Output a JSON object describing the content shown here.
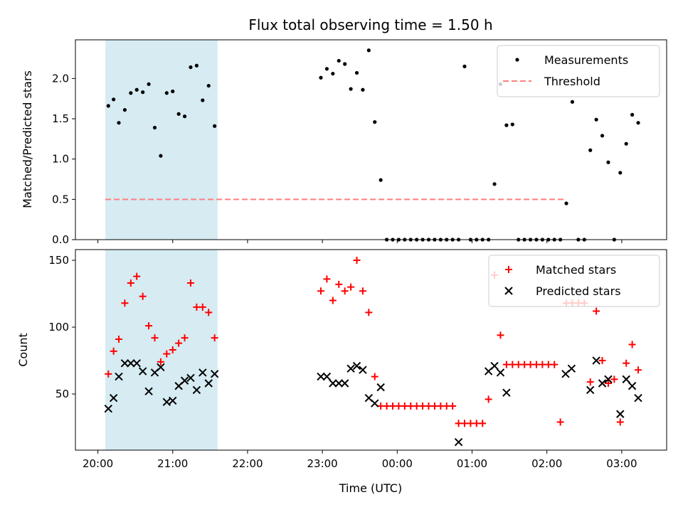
{
  "chart_data": {
    "title": "Flux total observing time = 1.50 h",
    "xlabel": "Time (UTC)",
    "x_unit": "hours since 20:00 UTC",
    "x_ticks": [
      {
        "x": 0,
        "label": "20:00"
      },
      {
        "x": 1,
        "label": "21:00"
      },
      {
        "x": 2,
        "label": "22:00"
      },
      {
        "x": 3,
        "label": "23:00"
      },
      {
        "x": 4,
        "label": "00:00"
      },
      {
        "x": 5,
        "label": "01:00"
      },
      {
        "x": 6,
        "label": "02:00"
      },
      {
        "x": 7,
        "label": "03:00"
      }
    ],
    "xlim": [
      -0.3,
      7.6
    ],
    "shaded_region": {
      "x0": 0.1,
      "x1": 1.6,
      "color": "#add8e6"
    },
    "panels": [
      {
        "id": "ratio",
        "type": "scatter",
        "ylabel": "Matched/Predicted stars",
        "ylim": [
          0,
          2.48
        ],
        "y_ticks": [
          {
            "v": 0,
            "label": "0.0"
          },
          {
            "v": 0.5,
            "label": "0.5"
          },
          {
            "v": 1,
            "label": "1.0"
          },
          {
            "v": 1.5,
            "label": "1.5"
          },
          {
            "v": 2,
            "label": "2.0"
          }
        ],
        "legend": {
          "placement": "upper-right",
          "entries": [
            {
              "label": "Measurements",
              "marker": "dot",
              "color": "#000000"
            },
            {
              "label": "Threshold",
              "marker": "dashed-line",
              "color": "#ff7f7f"
            }
          ]
        },
        "threshold": {
          "value": 0.5,
          "x0": 0.1,
          "x1": 6.25,
          "color": "#ff7f7f"
        },
        "series": [
          {
            "label": "Measurements",
            "marker": "dot",
            "color": "#000000",
            "x": [
              0.14,
              0.21,
              0.28,
              0.36,
              0.44,
              0.52,
              0.6,
              0.68,
              0.76,
              0.84,
              0.92,
              1.0,
              1.08,
              1.16,
              1.24,
              1.32,
              1.4,
              1.48,
              1.56,
              1.64,
              2.98,
              3.06,
              3.14,
              3.22,
              3.3,
              3.38,
              3.46,
              3.54,
              3.62,
              3.7,
              3.78,
              3.86,
              3.94,
              4.02,
              4.1,
              4.18,
              4.26,
              4.34,
              4.42,
              4.5,
              4.58,
              4.66,
              4.74,
              4.82,
              4.9,
              4.98,
              5.06,
              5.14,
              5.22,
              5.3,
              5.38,
              5.46,
              5.54,
              5.62,
              5.7,
              5.78,
              5.86,
              5.94,
              6.02,
              6.1,
              6.18,
              6.26,
              6.34,
              6.42,
              6.5,
              6.58,
              6.66,
              6.74,
              6.82,
              6.9,
              6.98,
              7.06,
              7.14,
              7.22
            ],
            "y": [
              1.66,
              1.74,
              1.45,
              1.61,
              1.82,
              1.86,
              1.83,
              1.93,
              1.39,
              1.04,
              1.82,
              1.84,
              1.56,
              1.53,
              2.14,
              2.16,
              1.73,
              1.91,
              1.41,
              null,
              2.01,
              2.12,
              2.06,
              2.22,
              2.18,
              1.87,
              2.07,
              1.86,
              2.35,
              1.46,
              0.74,
              0,
              0,
              0,
              0,
              0,
              0,
              0,
              0,
              0,
              0,
              0,
              0,
              0,
              2.15,
              0,
              0,
              0,
              0,
              0.69,
              1.93,
              1.42,
              1.43,
              0,
              0,
              0,
              0,
              0,
              0,
              0,
              0,
              0.45,
              1.71,
              0,
              0,
              1.11,
              1.49,
              1.29,
              0.96,
              0,
              0.83,
              1.19,
              1.55,
              1.45
            ]
          }
        ]
      },
      {
        "id": "counts",
        "type": "scatter",
        "ylabel": "Count",
        "ylim": [
          8,
          158
        ],
        "y_ticks": [
          {
            "v": 50,
            "label": "50"
          },
          {
            "v": 100,
            "label": "100"
          },
          {
            "v": 150,
            "label": "150"
          }
        ],
        "legend": {
          "placement": "upper-right",
          "entries": [
            {
              "label": "Matched stars",
              "marker": "plus",
              "color": "#ff0000"
            },
            {
              "label": "Predicted stars",
              "marker": "x",
              "color": "#000000"
            }
          ]
        },
        "series": [
          {
            "label": "Matched stars",
            "marker": "plus",
            "color": "#ff0000",
            "x": [
              0.14,
              0.21,
              0.28,
              0.36,
              0.44,
              0.52,
              0.6,
              0.68,
              0.76,
              0.84,
              0.92,
              1.0,
              1.08,
              1.16,
              1.24,
              1.32,
              1.4,
              1.48,
              1.56,
              1.64,
              2.98,
              3.06,
              3.14,
              3.22,
              3.3,
              3.38,
              3.46,
              3.54,
              3.62,
              3.7,
              3.78,
              3.86,
              3.94,
              4.02,
              4.1,
              4.18,
              4.26,
              4.34,
              4.42,
              4.5,
              4.58,
              4.66,
              4.74,
              4.82,
              4.9,
              4.98,
              5.06,
              5.14,
              5.22,
              5.3,
              5.38,
              5.46,
              5.54,
              5.62,
              5.7,
              5.78,
              5.86,
              5.94,
              6.02,
              6.1,
              6.18,
              6.26,
              6.34,
              6.42,
              6.5,
              6.58,
              6.66,
              6.74,
              6.82,
              6.9,
              6.98,
              7.06,
              7.14,
              7.22
            ],
            "y": [
              65,
              82,
              91,
              118,
              133,
              138,
              123,
              101,
              92,
              74,
              80,
              83,
              88,
              92,
              133,
              115,
              115,
              111,
              92,
              null,
              127,
              136,
              120,
              132,
              127,
              130,
              150,
              127,
              111,
              63,
              41,
              41,
              41,
              41,
              41,
              41,
              41,
              41,
              41,
              41,
              41,
              41,
              41,
              28,
              28,
              28,
              28,
              28,
              46,
              139,
              94,
              72,
              72,
              72,
              72,
              72,
              72,
              72,
              72,
              72,
              29,
              118,
              118,
              118,
              118,
              59,
              112,
              75,
              58,
              61,
              29,
              73,
              87,
              68
            ]
          },
          {
            "label": "Predicted stars",
            "marker": "x",
            "color": "#000000",
            "x": [
              0.14,
              0.21,
              0.28,
              0.36,
              0.44,
              0.52,
              0.6,
              0.68,
              0.76,
              0.84,
              0.92,
              1.0,
              1.08,
              1.16,
              1.24,
              1.32,
              1.4,
              1.48,
              1.56,
              1.64,
              2.98,
              3.06,
              3.14,
              3.22,
              3.3,
              3.38,
              3.46,
              3.54,
              3.62,
              3.7,
              3.78,
              3.86,
              4.82,
              5.22,
              5.3,
              5.38,
              5.46,
              6.25,
              6.33,
              6.58,
              6.66,
              6.74,
              6.82,
              6.98,
              7.06,
              7.14,
              7.22
            ],
            "y": [
              39,
              47,
              63,
              73,
              73,
              73,
              67,
              52,
              66,
              70,
              44,
              45,
              56,
              60,
              62,
              53,
              66,
              58,
              65,
              null,
              63,
              63,
              58,
              58,
              58,
              69,
              71,
              68,
              47,
              43,
              55,
              null,
              14,
              67,
              71,
              66,
              51,
              65,
              69,
              53,
              75,
              58,
              61,
              35,
              61,
              56,
              47
            ]
          }
        ]
      }
    ]
  }
}
